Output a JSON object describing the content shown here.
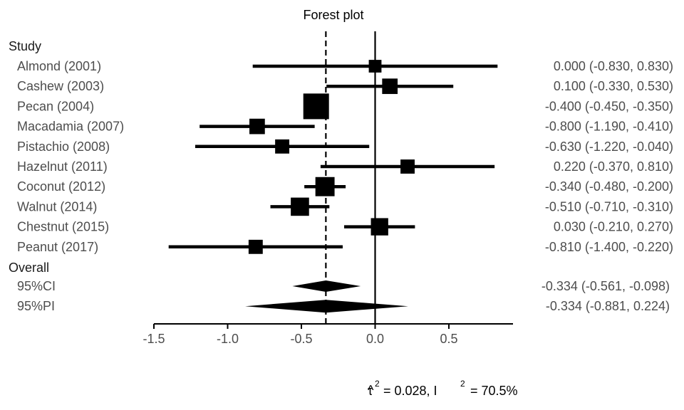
{
  "chart_data": {
    "type": "forest",
    "title": "Forest plot",
    "column_header": "Study",
    "overall_header": "Overall",
    "xlim": [
      -1.5,
      0.5
    ],
    "x_ticks": [
      -1.5,
      -1.0,
      -0.5,
      0.0,
      0.5
    ],
    "x_tick_labels": [
      "-1.5",
      "-1.0",
      "-0.5",
      "0.0",
      "0.5"
    ],
    "reference_line": 0,
    "pooled_line": -0.334,
    "studies": [
      {
        "label": "Almond (2001)",
        "estimate": 0.0,
        "lower": -0.83,
        "upper": 0.83,
        "ci_text": "0.000 (-0.830,  0.830)",
        "weight": 0.3
      },
      {
        "label": "Cashew (2003)",
        "estimate": 0.1,
        "lower": -0.33,
        "upper": 0.53,
        "ci_text": "0.100 (-0.330,  0.530)",
        "weight": 0.45
      },
      {
        "label": "Pecan (2004)",
        "estimate": -0.4,
        "lower": -0.45,
        "upper": -0.35,
        "ci_text": "-0.400 (-0.450, -0.350)",
        "weight": 1.0
      },
      {
        "label": "Macadamia (2007)",
        "estimate": -0.8,
        "lower": -1.19,
        "upper": -0.41,
        "ci_text": "-0.800 (-1.190, -0.410)",
        "weight": 0.45
      },
      {
        "label": "Pistachio (2008)",
        "estimate": -0.63,
        "lower": -1.22,
        "upper": -0.04,
        "ci_text": "-0.630 (-1.220, -0.040)",
        "weight": 0.38
      },
      {
        "label": "Hazelnut (2011)",
        "estimate": 0.22,
        "lower": -0.37,
        "upper": 0.81,
        "ci_text": "0.220 (-0.370,  0.810)",
        "weight": 0.38
      },
      {
        "label": "Coconut (2012)",
        "estimate": -0.34,
        "lower": -0.48,
        "upper": -0.2,
        "ci_text": "-0.340 (-0.480, -0.200)",
        "weight": 0.65
      },
      {
        "label": "Walnut (2014)",
        "estimate": -0.51,
        "lower": -0.71,
        "upper": -0.31,
        "ci_text": "-0.510 (-0.710, -0.310)",
        "weight": 0.6
      },
      {
        "label": "Chestnut (2015)",
        "estimate": 0.03,
        "lower": -0.21,
        "upper": 0.27,
        "ci_text": "0.030 (-0.210,  0.270)",
        "weight": 0.55
      },
      {
        "label": "Peanut (2017)",
        "estimate": -0.81,
        "lower": -1.4,
        "upper": -0.22,
        "ci_text": "-0.810 (-1.400, -0.220)",
        "weight": 0.38
      }
    ],
    "summaries": [
      {
        "label": "95%CI",
        "estimate": -0.334,
        "lower": -0.561,
        "upper": -0.098,
        "ci_text": "-0.334 (-0.561, -0.098)"
      },
      {
        "label": "95%PI",
        "estimate": -0.334,
        "lower": -0.881,
        "upper": 0.224,
        "ci_text": "-0.334 (-0.881, 0.224)"
      }
    ],
    "heterogeneity": {
      "tau2_symbol": "τ",
      "tau2_value": "= 0.028, I",
      "i2_value": "= 70.5%",
      "superscript": "2"
    }
  }
}
